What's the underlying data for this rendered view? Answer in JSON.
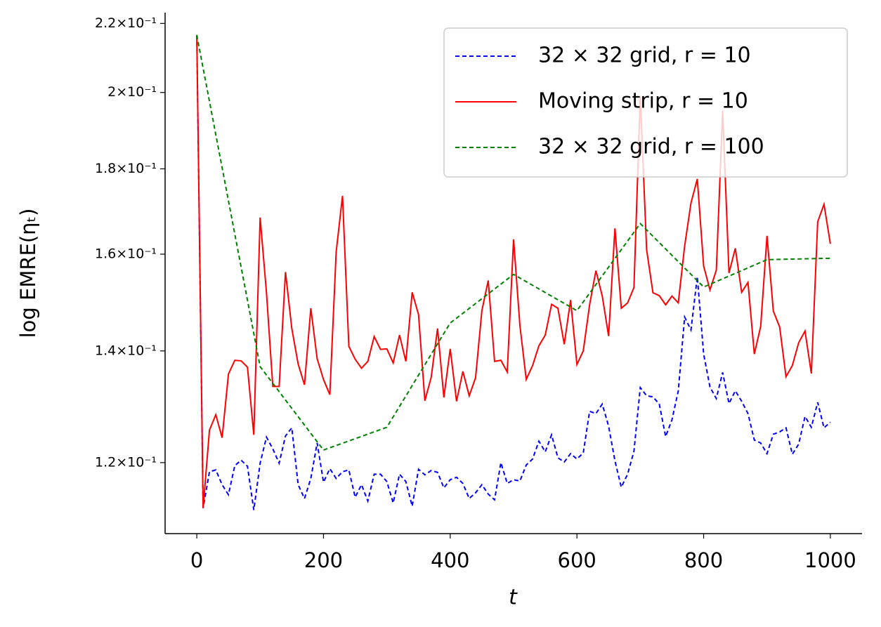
{
  "chart_data": {
    "type": "line",
    "xlabel": "t",
    "ylabel": "log EMRE(ηₜ)",
    "ylog": true,
    "grid": false,
    "legend": "upper right",
    "xlim": [
      -50,
      1050
    ],
    "ylim": [
      0.1088,
      0.2233
    ],
    "xticks": [
      0,
      200,
      400,
      600,
      800,
      1000
    ],
    "yticks": [
      {
        "value": 0.12,
        "label": "1.2×10⁻¹"
      },
      {
        "value": 0.14,
        "label": "1.4×10⁻¹"
      },
      {
        "value": 0.16,
        "label": "1.6×10⁻¹"
      },
      {
        "value": 0.18,
        "label": "1.8×10⁻¹"
      },
      {
        "value": 0.2,
        "label": "2×10⁻¹"
      },
      {
        "value": 0.22,
        "label": "2.2×10⁻¹"
      }
    ],
    "series": [
      {
        "name": "32 × 32 grid, r = 10",
        "color": "#0000ff",
        "dash": "6,4",
        "x": [
          0,
          10,
          20,
          30,
          40,
          50,
          60,
          70,
          80,
          90,
          100,
          110,
          120,
          130,
          140,
          150,
          160,
          170,
          180,
          190,
          200,
          210,
          220,
          230,
          240,
          250,
          260,
          270,
          280,
          290,
          300,
          310,
          320,
          330,
          340,
          350,
          360,
          370,
          380,
          390,
          400,
          410,
          420,
          430,
          440,
          450,
          460,
          470,
          480,
          490,
          500,
          510,
          520,
          530,
          540,
          550,
          560,
          570,
          580,
          590,
          600,
          610,
          620,
          630,
          640,
          650,
          660,
          670,
          680,
          690,
          700,
          710,
          720,
          730,
          740,
          750,
          760,
          770,
          780,
          790,
          800,
          810,
          820,
          830,
          840,
          850,
          860,
          870,
          880,
          890,
          900,
          910,
          920,
          930,
          940,
          950,
          960,
          970,
          980,
          990,
          1000
        ],
        "values": [
          0.2165,
          0.1127,
          0.1185,
          0.1188,
          0.1164,
          0.1148,
          0.1195,
          0.1204,
          0.1194,
          0.1124,
          0.1199,
          0.1243,
          0.1223,
          0.1199,
          0.1245,
          0.1259,
          0.1164,
          0.1142,
          0.1174,
          0.1233,
          0.1168,
          0.119,
          0.1174,
          0.1185,
          0.1188,
          0.1144,
          0.1164,
          0.1138,
          0.1181,
          0.1181,
          0.1169,
          0.1135,
          0.1181,
          0.1169,
          0.113,
          0.1189,
          0.118,
          0.1187,
          0.1184,
          0.1159,
          0.1172,
          0.1176,
          0.1166,
          0.1142,
          0.1151,
          0.1164,
          0.1149,
          0.114,
          0.12,
          0.1166,
          0.1172,
          0.117,
          0.1196,
          0.1206,
          0.1236,
          0.1218,
          0.1247,
          0.1208,
          0.1201,
          0.1215,
          0.1206,
          0.1216,
          0.1288,
          0.1284,
          0.1301,
          0.1262,
          0.1203,
          0.116,
          0.1181,
          0.1219,
          0.1331,
          0.1316,
          0.1314,
          0.1301,
          0.1244,
          0.1273,
          0.1325,
          0.1467,
          0.1441,
          0.1551,
          0.1394,
          0.1332,
          0.1311,
          0.1359,
          0.1302,
          0.1325,
          0.1306,
          0.1284,
          0.1238,
          0.1233,
          0.1215,
          0.1248,
          0.1252,
          0.1259,
          0.1214,
          0.1231,
          0.1279,
          0.126,
          0.1304,
          0.1259,
          0.1269
        ]
      },
      {
        "name": "Moving strip, r = 10",
        "color": "#ff0000",
        "dash": "none",
        "x": [
          0,
          10,
          20,
          30,
          40,
          50,
          60,
          70,
          80,
          90,
          100,
          110,
          120,
          130,
          140,
          150,
          160,
          170,
          180,
          190,
          200,
          210,
          220,
          230,
          240,
          250,
          260,
          270,
          280,
          290,
          300,
          310,
          320,
          330,
          340,
          350,
          360,
          370,
          380,
          390,
          400,
          410,
          420,
          430,
          440,
          450,
          460,
          470,
          480,
          490,
          500,
          510,
          520,
          530,
          540,
          550,
          560,
          570,
          580,
          590,
          600,
          610,
          620,
          630,
          640,
          650,
          660,
          670,
          680,
          690,
          700,
          710,
          720,
          730,
          740,
          750,
          760,
          770,
          780,
          790,
          800,
          810,
          820,
          830,
          840,
          850,
          860,
          870,
          880,
          890,
          900,
          910,
          920,
          930,
          940,
          950,
          960,
          970,
          980,
          990,
          1000
        ],
        "values": [
          0.2165,
          0.1127,
          0.1255,
          0.1282,
          0.1242,
          0.1356,
          0.1382,
          0.1381,
          0.1369,
          0.1247,
          0.1683,
          0.1517,
          0.1333,
          0.1333,
          0.1561,
          0.1444,
          0.1375,
          0.1336,
          0.1485,
          0.1385,
          0.1346,
          0.1318,
          0.1605,
          0.1734,
          0.1409,
          0.1384,
          0.1367,
          0.138,
          0.1428,
          0.1403,
          0.1404,
          0.1377,
          0.1431,
          0.138,
          0.1518,
          0.1472,
          0.1307,
          0.135,
          0.1444,
          0.1313,
          0.1404,
          0.1306,
          0.1361,
          0.1316,
          0.1349,
          0.148,
          0.1543,
          0.138,
          0.1382,
          0.136,
          0.1633,
          0.145,
          0.1346,
          0.1372,
          0.141,
          0.1431,
          0.1493,
          0.1485,
          0.1413,
          0.1502,
          0.1374,
          0.14,
          0.1492,
          0.1564,
          0.151,
          0.1429,
          0.1658,
          0.1485,
          0.1496,
          0.1528,
          0.199,
          0.161,
          0.1517,
          0.1511,
          0.1492,
          0.151,
          0.1496,
          0.1618,
          0.1717,
          0.1775,
          0.1574,
          0.1523,
          0.1565,
          0.195,
          0.1559,
          0.1613,
          0.1518,
          0.1539,
          0.1394,
          0.1448,
          0.1641,
          0.1479,
          0.1447,
          0.1351,
          0.1372,
          0.1416,
          0.1439,
          0.1357,
          0.1673,
          0.1714,
          0.1623
        ]
      },
      {
        "name": "32 × 32 grid, r = 100",
        "color": "#008000",
        "dash": "6,4",
        "x": [
          0,
          100,
          200,
          300,
          400,
          500,
          600,
          700,
          800,
          900,
          1000
        ],
        "values": [
          0.2165,
          0.137,
          0.1221,
          0.126,
          0.1455,
          0.1556,
          0.148,
          0.1669,
          0.1529,
          0.1588,
          0.1591
        ]
      }
    ]
  }
}
